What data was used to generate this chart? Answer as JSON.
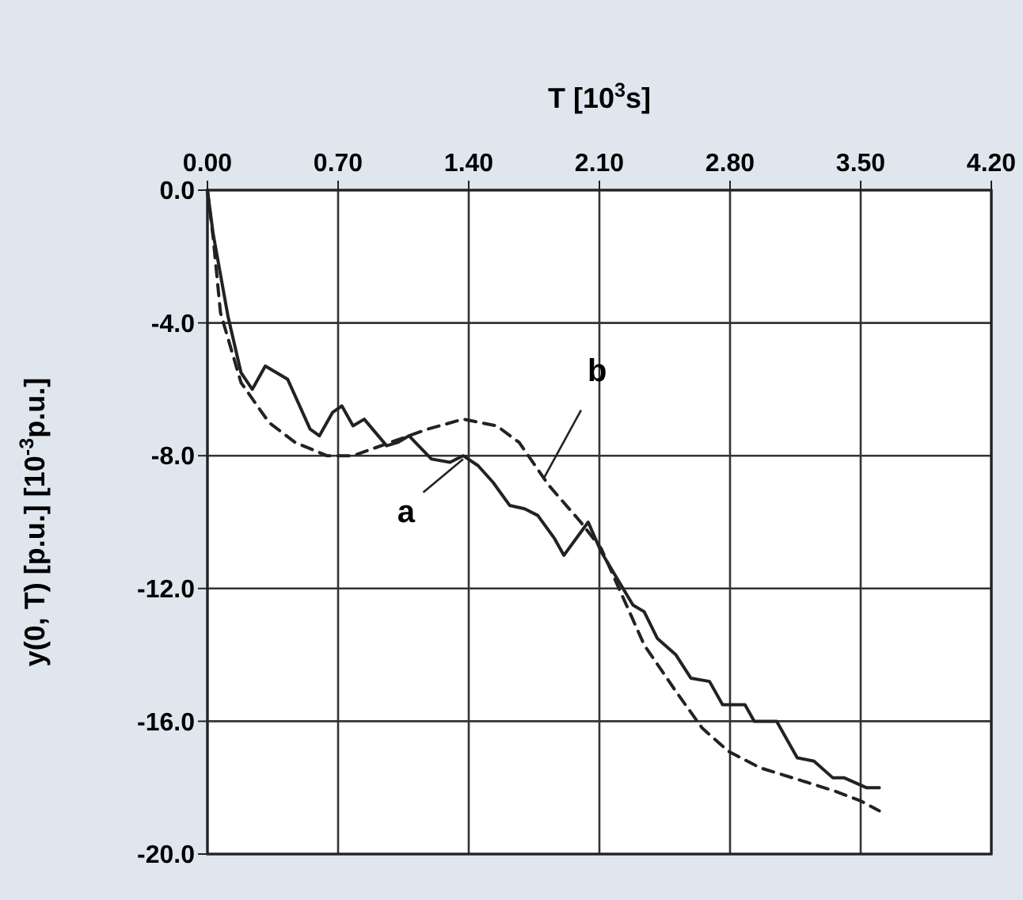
{
  "chart_data": {
    "type": "line",
    "xlabel": "T  [10$^{3}$s]",
    "ylabel": "y(0, T) [p.u.]  [10$^{-3}$p.u.]",
    "xlim": [
      0,
      4.2
    ],
    "ylim": [
      -20,
      0
    ],
    "xticks": [
      {
        "value": 0,
        "label": "0.00"
      },
      {
        "value": 0.7,
        "label": "0.70"
      },
      {
        "value": 1.4,
        "label": "1.40"
      },
      {
        "value": 2.1,
        "label": "2.10"
      },
      {
        "value": 2.8,
        "label": "2.80"
      },
      {
        "value": 3.5,
        "label": "3.50"
      },
      {
        "value": 4.2,
        "label": "4.20"
      }
    ],
    "yticks": [
      {
        "value": 0,
        "label": "0.0"
      },
      {
        "value": -4,
        "label": "-4.0"
      },
      {
        "value": -8,
        "label": "-8.0"
      },
      {
        "value": -12,
        "label": "-12.0"
      },
      {
        "value": -16,
        "label": "-16.0"
      },
      {
        "value": -20,
        "label": "-20.0"
      }
    ],
    "grid": true,
    "series": [
      {
        "color": "#222222",
        "line_style": "solid",
        "x": [
          0,
          0.03,
          0.11,
          0.18,
          0.24,
          0.31,
          0.43,
          0.55,
          0.6,
          0.67,
          0.72,
          0.78,
          0.84,
          0.96,
          1.02,
          1.08,
          1.2,
          1.3,
          1.37,
          1.45,
          1.53,
          1.62,
          1.7,
          1.77,
          1.86,
          1.91,
          2.04,
          2.11,
          2.28,
          2.34,
          2.41,
          2.51,
          2.59,
          2.69,
          2.76,
          2.88,
          2.93,
          3.05,
          3.16,
          3.25,
          3.35,
          3.41,
          3.53,
          3.6
        ],
        "values": [
          0,
          -1.3,
          -3.8,
          -5.5,
          -6,
          -5.3,
          -5.7,
          -7.2,
          -7.4,
          -6.7,
          -6.5,
          -7.1,
          -6.9,
          -7.7,
          -7.6,
          -7.4,
          -8.1,
          -8.2,
          -8,
          -8.3,
          -8.8,
          -9.5,
          -9.6,
          -9.8,
          -10.5,
          -11,
          -10,
          -10.9,
          -12.5,
          -12.7,
          -13.5,
          -14,
          -14.7,
          -14.8,
          -15.5,
          -15.5,
          -16,
          -16,
          -17.1,
          -17.2,
          -17.7,
          -17.7,
          -18,
          -18
        ]
      },
      {
        "color": "#222222",
        "line_style": "dashed",
        "x": [
          0,
          0.03,
          0.07,
          0.18,
          0.33,
          0.47,
          0.64,
          0.78,
          0.98,
          1.18,
          1.37,
          1.55,
          1.67,
          1.83,
          2,
          2.11,
          2.34,
          2.51,
          2.65,
          2.79,
          2.96,
          3.19,
          3.36,
          3.5,
          3.6
        ],
        "values": [
          0,
          -1.4,
          -3.7,
          -5.8,
          -7,
          -7.6,
          -8,
          -8,
          -7.6,
          -7.2,
          -6.9,
          -7.1,
          -7.6,
          -8.9,
          -10,
          -10.8,
          -13.7,
          -15.1,
          -16.2,
          -16.9,
          -17.4,
          -17.8,
          -18.1,
          -18.4,
          -18.7
        ]
      }
    ],
    "annotations": [
      {
        "text": "a",
        "x": 1.37,
        "y": -8.1
      },
      {
        "text": "b",
        "x": 1.8,
        "y": -8.7
      }
    ]
  }
}
